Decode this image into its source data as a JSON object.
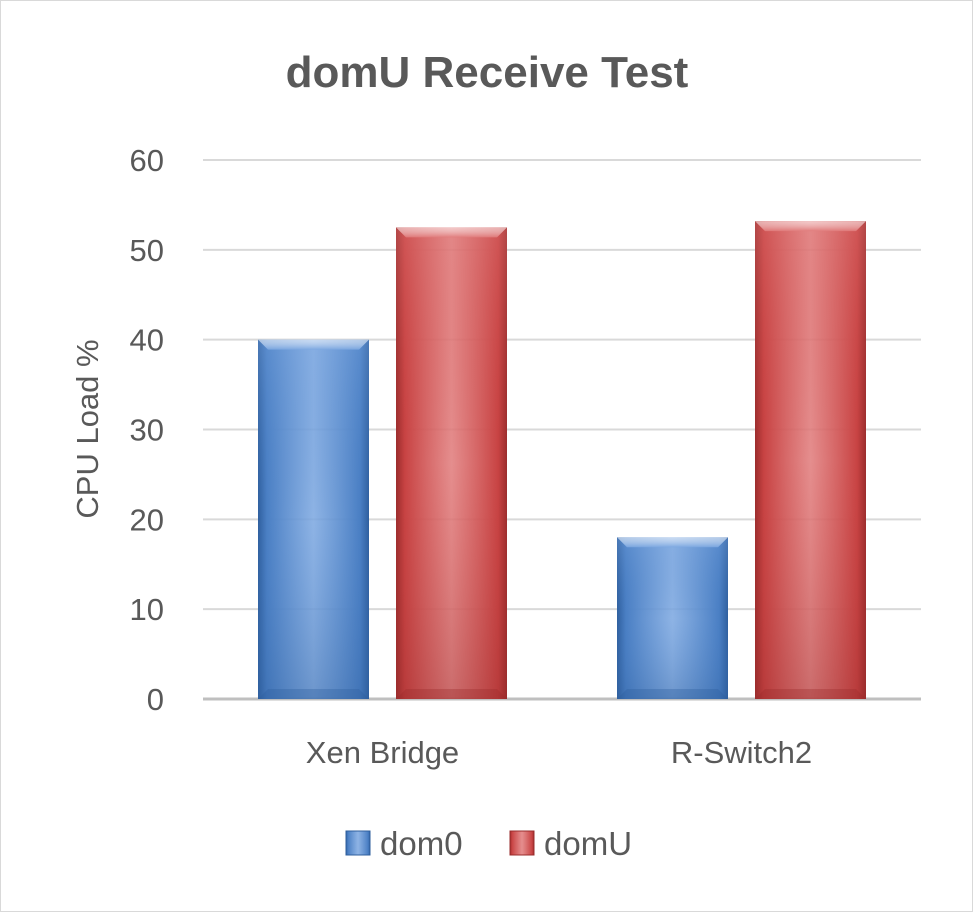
{
  "chart_data": {
    "type": "bar",
    "title": "domU Receive Test",
    "xlabel": "",
    "ylabel": "CPU Load %",
    "categories": [
      "Xen Bridge",
      "R-Switch2"
    ],
    "series": [
      {
        "name": "dom0",
        "values": [
          40,
          18
        ]
      },
      {
        "name": "domU",
        "values": [
          52.5,
          53.2
        ]
      }
    ],
    "ylim": [
      0,
      60
    ],
    "yticks": [
      0,
      10,
      20,
      30,
      40,
      50,
      60
    ],
    "grid": true,
    "legend_position": "bottom"
  },
  "colors": {
    "dom0": "#4a7fc4",
    "dom0_light": "#7aa6e0",
    "dom0_dark": "#2f5f9e",
    "domU": "#c84343",
    "domU_light": "#e07a7a",
    "domU_dark": "#9a2c2c",
    "grid": "#d9d9d9",
    "text": "#595959"
  }
}
